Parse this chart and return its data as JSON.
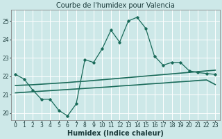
{
  "title": "Courbe de l'humidex pour Valencia",
  "xlabel": "Humidex (Indice chaleur)",
  "xlim": [
    -0.5,
    23.5
  ],
  "ylim": [
    19.6,
    25.6
  ],
  "yticks": [
    20,
    21,
    22,
    23,
    24,
    25
  ],
  "xticks": [
    0,
    1,
    2,
    3,
    4,
    5,
    6,
    7,
    8,
    9,
    10,
    11,
    12,
    13,
    14,
    15,
    16,
    17,
    18,
    19,
    20,
    21,
    22,
    23
  ],
  "background_color": "#cde8e8",
  "grid_color": "#ffffff",
  "line_color": "#1a6b5a",
  "line1_x": [
    0,
    1,
    2,
    3,
    4,
    5,
    6,
    7,
    8,
    9,
    10,
    11,
    12,
    13,
    14,
    15,
    16,
    17,
    18,
    19,
    20,
    21,
    22,
    23
  ],
  "line1_y": [
    22.1,
    21.85,
    21.25,
    20.75,
    20.75,
    20.15,
    19.85,
    20.5,
    22.9,
    22.75,
    23.5,
    24.5,
    23.85,
    25.0,
    25.2,
    24.6,
    23.1,
    22.6,
    22.75,
    22.75,
    22.3,
    22.2,
    22.15,
    22.1
  ],
  "line2_x": [
    0,
    1,
    2,
    3,
    4,
    5,
    6,
    7,
    8,
    9,
    10,
    11,
    12,
    13,
    14,
    15,
    16,
    17,
    18,
    19,
    20,
    21,
    22,
    23
  ],
  "line2_y": [
    21.5,
    21.52,
    21.54,
    21.57,
    21.6,
    21.63,
    21.66,
    21.7,
    21.73,
    21.77,
    21.81,
    21.85,
    21.89,
    21.93,
    21.97,
    22.01,
    22.05,
    22.09,
    22.13,
    22.17,
    22.21,
    22.25,
    22.29,
    22.33
  ],
  "line3_x": [
    0,
    1,
    2,
    3,
    4,
    5,
    6,
    7,
    8,
    9,
    10,
    11,
    12,
    13,
    14,
    15,
    16,
    17,
    18,
    19,
    20,
    21,
    22,
    23
  ],
  "line3_y": [
    21.1,
    21.13,
    21.16,
    21.19,
    21.22,
    21.25,
    21.28,
    21.31,
    21.34,
    21.37,
    21.4,
    21.43,
    21.47,
    21.5,
    21.53,
    21.57,
    21.6,
    21.63,
    21.67,
    21.7,
    21.73,
    21.77,
    21.8,
    21.55
  ],
  "title_fontsize": 7,
  "label_fontsize": 7,
  "tick_fontsize": 5.5
}
